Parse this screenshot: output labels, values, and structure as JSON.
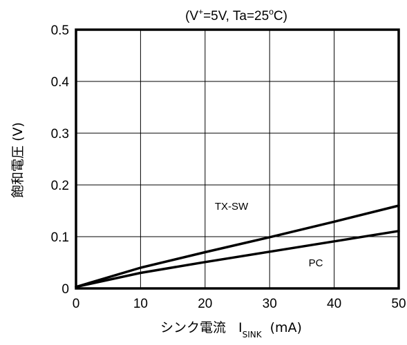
{
  "chart_data": {
    "type": "line",
    "title": {
      "prefix": "(V",
      "superscript": "+",
      "middle": "=5V, Ta=25",
      "degree": "o",
      "suffix": "C)"
    },
    "xlabel": {
      "main": "シンク電流",
      "symbol": "I",
      "subscript": "SINK",
      "unit": "(mA)"
    },
    "ylabel": "飽和電圧 (V)",
    "xlim": [
      0,
      50
    ],
    "ylim": [
      0,
      0.5
    ],
    "x_ticks": [
      "0",
      "10",
      "20",
      "30",
      "40",
      "50"
    ],
    "y_ticks": [
      "0",
      "0.1",
      "0.2",
      "0.3",
      "0.4",
      "0.5"
    ],
    "grid": true,
    "series": [
      {
        "name": "TX-SW",
        "x": [
          0,
          10,
          20,
          30,
          40,
          50
        ],
        "y": [
          0.003,
          0.04,
          0.07,
          0.099,
          0.129,
          0.16
        ]
      },
      {
        "name": "PC",
        "x": [
          0,
          10,
          20,
          30,
          40,
          50
        ],
        "y": [
          0.003,
          0.03,
          0.051,
          0.071,
          0.091,
          0.111
        ]
      }
    ]
  }
}
